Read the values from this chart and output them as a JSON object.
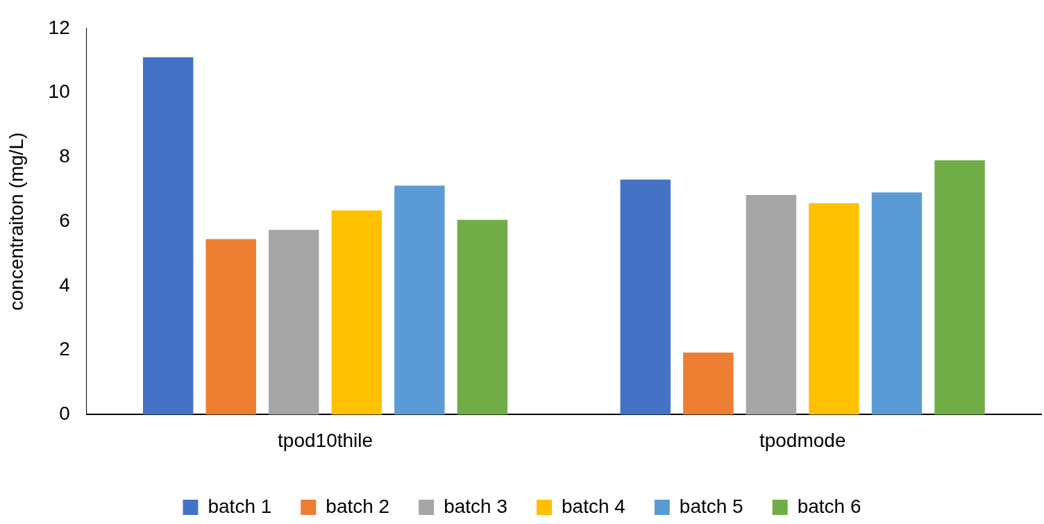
{
  "chart_data": {
    "type": "bar",
    "ylabel": "concentraiton (mg/L)",
    "categories": [
      "tpod10thile",
      "tpodmode"
    ],
    "series": [
      {
        "name": "batch 1",
        "color": "#4472c4",
        "values": [
          11.1,
          7.3
        ]
      },
      {
        "name": "batch 2",
        "color": "#ed7d31",
        "values": [
          5.45,
          1.93
        ]
      },
      {
        "name": "batch 3",
        "color": "#a5a5a5",
        "values": [
          5.74,
          6.82
        ]
      },
      {
        "name": "batch 4",
        "color": "#ffc000",
        "values": [
          6.34,
          6.57
        ]
      },
      {
        "name": "batch 5",
        "color": "#5b9bd5",
        "values": [
          7.11,
          6.9
        ]
      },
      {
        "name": "batch 6",
        "color": "#70ad47",
        "values": [
          6.05,
          7.9
        ]
      }
    ],
    "ylim": [
      0,
      12
    ],
    "yticks": [
      0,
      2,
      4,
      6,
      8,
      10,
      12
    ],
    "grid": false,
    "legend": "bottom"
  }
}
